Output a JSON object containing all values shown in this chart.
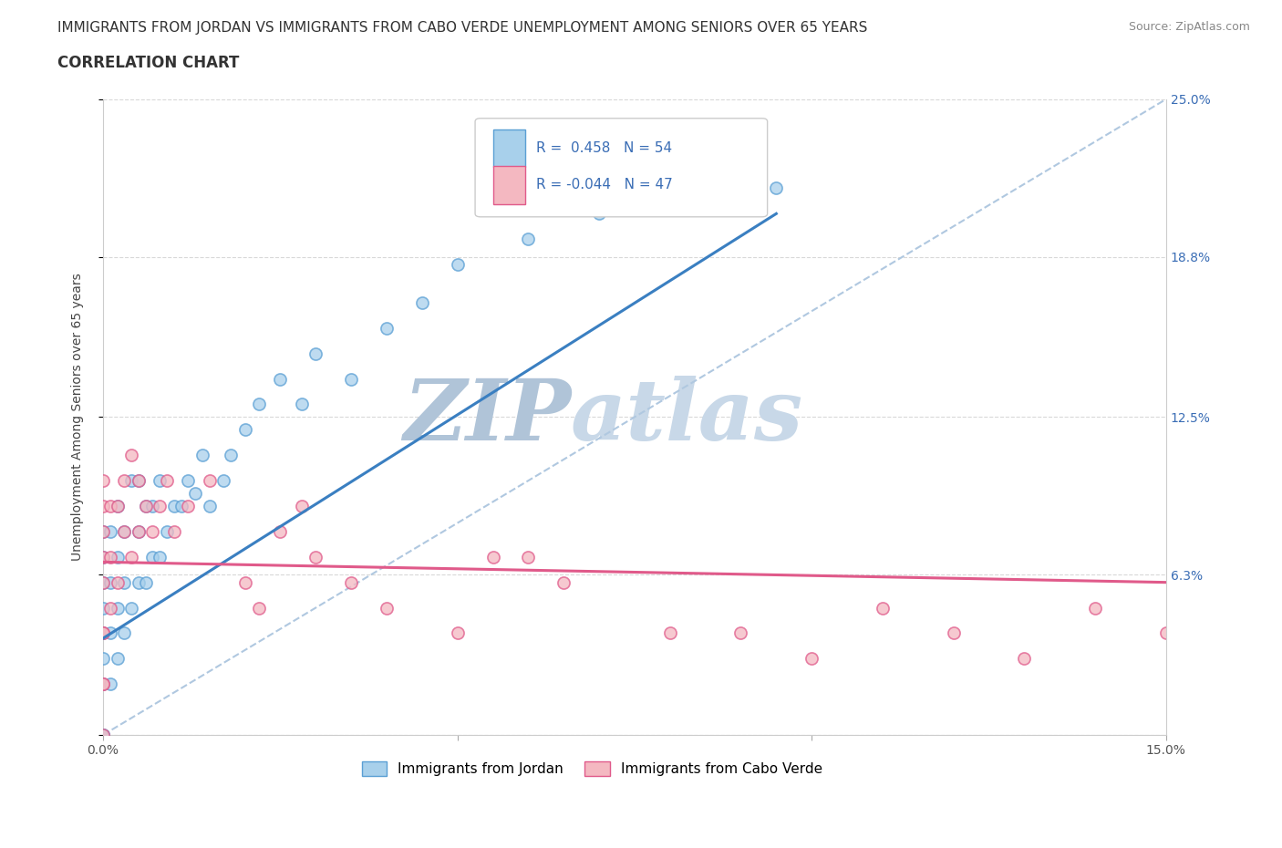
{
  "title_line1": "IMMIGRANTS FROM JORDAN VS IMMIGRANTS FROM CABO VERDE UNEMPLOYMENT AMONG SENIORS OVER 65 YEARS",
  "title_line2": "CORRELATION CHART",
  "source_text": "Source: ZipAtlas.com",
  "ylabel": "Unemployment Among Seniors over 65 years",
  "xlim": [
    0.0,
    0.15
  ],
  "ylim": [
    0.0,
    0.25
  ],
  "xtick_vals": [
    0.0,
    0.05,
    0.1,
    0.15
  ],
  "xtick_labels": [
    "0.0%",
    "",
    "",
    "15.0%"
  ],
  "ytick_vals": [
    0.0,
    0.063,
    0.125,
    0.188,
    0.25
  ],
  "ytick_labels_right": [
    "",
    "6.3%",
    "12.5%",
    "18.8%",
    "25.0%"
  ],
  "jordan_R": "0.458",
  "jordan_N": "54",
  "caboverde_R": "-0.044",
  "caboverde_N": "47",
  "jordan_fill": "#a8d0eb",
  "jordan_edge": "#5a9fd4",
  "caboverde_fill": "#f4b8c1",
  "caboverde_edge": "#e05a8a",
  "trendline_jordan": "#3a7fc1",
  "trendline_caboverde": "#e05a8a",
  "dashed_color": "#b0c8e0",
  "watermark_zip_color": "#b0c4d8",
  "watermark_atlas_color": "#c8d8e8",
  "grid_color": "#d8d8d8",
  "legend_label_jordan": "Immigrants from Jordan",
  "legend_label_caboverde": "Immigrants from Cabo Verde",
  "jordan_x": [
    0.0,
    0.0,
    0.0,
    0.0,
    0.0,
    0.0,
    0.0,
    0.0,
    0.0,
    0.0,
    0.001,
    0.001,
    0.001,
    0.001,
    0.002,
    0.002,
    0.002,
    0.002,
    0.003,
    0.003,
    0.003,
    0.004,
    0.004,
    0.005,
    0.005,
    0.005,
    0.006,
    0.006,
    0.007,
    0.007,
    0.008,
    0.008,
    0.009,
    0.01,
    0.011,
    0.012,
    0.013,
    0.014,
    0.015,
    0.017,
    0.018,
    0.02,
    0.022,
    0.025,
    0.028,
    0.03,
    0.035,
    0.04,
    0.045,
    0.05,
    0.06,
    0.07,
    0.085,
    0.095
  ],
  "jordan_y": [
    0.0,
    0.0,
    0.0,
    0.02,
    0.03,
    0.04,
    0.05,
    0.06,
    0.07,
    0.08,
    0.02,
    0.04,
    0.06,
    0.08,
    0.03,
    0.05,
    0.07,
    0.09,
    0.04,
    0.06,
    0.08,
    0.05,
    0.1,
    0.06,
    0.08,
    0.1,
    0.06,
    0.09,
    0.07,
    0.09,
    0.07,
    0.1,
    0.08,
    0.09,
    0.09,
    0.1,
    0.095,
    0.11,
    0.09,
    0.1,
    0.11,
    0.12,
    0.13,
    0.14,
    0.13,
    0.15,
    0.14,
    0.16,
    0.17,
    0.185,
    0.195,
    0.205,
    0.215,
    0.215
  ],
  "caboverde_x": [
    0.0,
    0.0,
    0.0,
    0.0,
    0.0,
    0.0,
    0.0,
    0.0,
    0.0,
    0.0,
    0.001,
    0.001,
    0.001,
    0.002,
    0.002,
    0.003,
    0.003,
    0.004,
    0.004,
    0.005,
    0.005,
    0.006,
    0.007,
    0.008,
    0.009,
    0.01,
    0.012,
    0.015,
    0.02,
    0.022,
    0.025,
    0.028,
    0.03,
    0.035,
    0.04,
    0.05,
    0.055,
    0.065,
    0.08,
    0.09,
    0.1,
    0.11,
    0.12,
    0.13,
    0.14,
    0.15,
    0.06
  ],
  "caboverde_y": [
    0.0,
    0.02,
    0.04,
    0.06,
    0.07,
    0.08,
    0.09,
    0.1,
    0.04,
    0.02,
    0.05,
    0.07,
    0.09,
    0.06,
    0.09,
    0.08,
    0.1,
    0.07,
    0.11,
    0.08,
    0.1,
    0.09,
    0.08,
    0.09,
    0.1,
    0.08,
    0.09,
    0.1,
    0.06,
    0.05,
    0.08,
    0.09,
    0.07,
    0.06,
    0.05,
    0.04,
    0.07,
    0.06,
    0.04,
    0.04,
    0.03,
    0.05,
    0.04,
    0.03,
    0.05,
    0.04,
    0.07
  ],
  "jordan_trendline_x": [
    0.0,
    0.095
  ],
  "jordan_trendline_y": [
    0.038,
    0.205
  ],
  "caboverde_trendline_x": [
    0.0,
    0.15
  ],
  "caboverde_trendline_y": [
    0.068,
    0.06
  ],
  "title_fontsize": 11,
  "subtitle_fontsize": 12,
  "tick_fontsize": 10,
  "legend_fontsize": 11,
  "source_fontsize": 9
}
